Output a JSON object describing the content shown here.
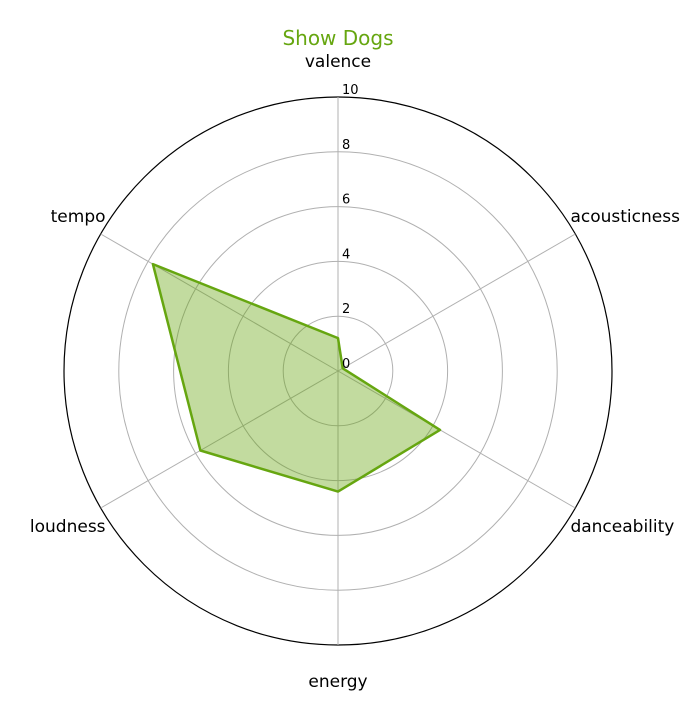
{
  "chart_data": {
    "type": "radar",
    "title": "Show Dogs",
    "axes": [
      "valence",
      "acousticness",
      "danceability",
      "energy",
      "loudness",
      "tempo"
    ],
    "series": [
      {
        "values": [
          1.2,
          0.2,
          4.3,
          4.4,
          5.8,
          7.8
        ]
      }
    ],
    "rlim": [
      0,
      10
    ],
    "r_ticks": [
      "0",
      "2",
      "4",
      "6",
      "8",
      "10"
    ],
    "grid": true,
    "colors": {
      "line": "#66a610",
      "fill": "#66a610",
      "fill_opacity": 0.4,
      "title": "#66a610"
    }
  }
}
